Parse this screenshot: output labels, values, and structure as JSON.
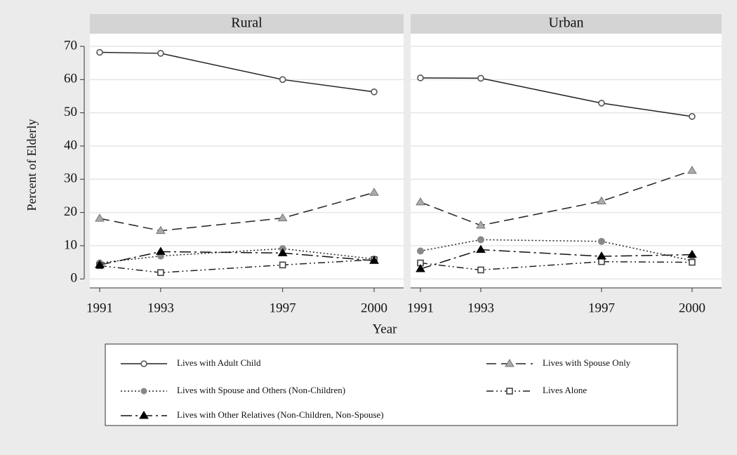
{
  "chart_data": {
    "type": "line",
    "y_label": "Percent of Elderly",
    "x_label": "Year",
    "x": [
      1991,
      1993,
      1997,
      2000
    ],
    "xlim": [
      1990.6,
      2000.6
    ],
    "xticks": [
      1991,
      1993,
      1997,
      2000
    ],
    "ylim": [
      -2.7,
      70
    ],
    "yticks": [
      0,
      10,
      20,
      30,
      40,
      50,
      60,
      70
    ],
    "grid": true,
    "series": [
      {
        "name": "Lives with Adult Child",
        "color": "#222222",
        "dash": "none",
        "marker": "hollow-circle",
        "marker_color": "#555555"
      },
      {
        "name": "Lives with Spouse Only",
        "color": "#222222",
        "dash": "14 7",
        "marker": "triangle",
        "marker_color": "#aaaaaa"
      },
      {
        "name": "Lives with Spouse and Others (Non-Children)",
        "color": "#222222",
        "dash": "2 3",
        "marker": "circle",
        "marker_color": "#888888"
      },
      {
        "name": "Lives Alone",
        "color": "#222222",
        "dash": "10 4 2 4 2 4",
        "marker": "hollow-square",
        "marker_color": "#444444"
      },
      {
        "name": "Lives with Other Relatives (Non-Children, Non-Spouse)",
        "color": "#111111",
        "dash": "16 5 3 5",
        "marker": "triangle",
        "marker_color": "#000000"
      }
    ],
    "panels": [
      {
        "title": "Rural",
        "values": [
          [
            68.2,
            67.9,
            60.0,
            56.3
          ],
          [
            18.2,
            14.5,
            18.3,
            26.0
          ],
          [
            4.8,
            6.9,
            9.1,
            6.0
          ],
          [
            4.0,
            1.9,
            4.2,
            5.8
          ],
          [
            4.2,
            8.2,
            7.8,
            5.5
          ]
        ]
      },
      {
        "title": "Urban",
        "values": [
          [
            60.5,
            60.4,
            52.9,
            48.9
          ],
          [
            23.1,
            16.1,
            23.4,
            32.6
          ],
          [
            8.4,
            11.8,
            11.3,
            5.5
          ],
          [
            4.8,
            2.7,
            5.2,
            5.0
          ],
          [
            3.0,
            8.8,
            6.8,
            7.3
          ]
        ]
      }
    ]
  }
}
